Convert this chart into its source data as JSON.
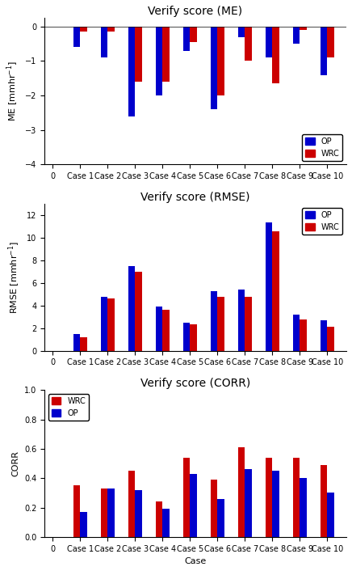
{
  "me_op": [
    -0.6,
    -0.9,
    -2.6,
    -2.0,
    -0.7,
    -2.4,
    -0.3,
    -0.9,
    -0.5,
    -1.4
  ],
  "me_wrc": [
    -0.15,
    -0.15,
    -1.6,
    -1.6,
    -0.45,
    -2.0,
    -1.0,
    -1.65,
    -0.1,
    -0.9
  ],
  "rmse_op": [
    1.5,
    4.8,
    7.5,
    3.9,
    2.5,
    5.3,
    5.4,
    11.4,
    3.2,
    2.7
  ],
  "rmse_wrc": [
    1.2,
    4.6,
    7.0,
    3.6,
    2.35,
    4.8,
    4.75,
    10.6,
    2.75,
    2.15
  ],
  "corr_wrc": [
    0.35,
    0.33,
    0.45,
    0.24,
    0.54,
    0.39,
    0.61,
    0.54,
    0.54,
    0.49
  ],
  "corr_op": [
    0.17,
    0.33,
    0.32,
    0.19,
    0.43,
    0.26,
    0.46,
    0.45,
    0.4,
    0.3
  ],
  "cases": [
    "Case 1",
    "Case 2",
    "Case 3",
    "Case 4",
    "Case 5",
    "Case 6",
    "Case 7",
    "Case 8",
    "Case 9",
    "Case 10"
  ],
  "op_color": "#0000cc",
  "wrc_color": "#cc0000",
  "title_me": "Verify score (ME)",
  "title_rmse": "Verify score (RMSE)",
  "title_corr": "Verify score (CORR)",
  "ylabel_me": "ME [mmhr$^{-1}$]",
  "ylabel_rmse": "RMSE [mmhr$^{-1}$]",
  "ylabel_corr": "CORR",
  "xlabel_corr": "Case",
  "ylim_me": [
    -4.0,
    0.25
  ],
  "ylim_rmse": [
    0,
    13
  ],
  "ylim_corr": [
    0.0,
    1.0
  ],
  "yticks_me": [
    0,
    -1,
    -2,
    -3,
    -4
  ],
  "yticks_rmse": [
    0,
    2,
    4,
    6,
    8,
    10,
    12
  ],
  "yticks_corr": [
    0.0,
    0.2,
    0.4,
    0.6,
    0.8,
    1.0
  ],
  "bar_width": 0.25,
  "bg_color": "#ffffff",
  "title_fontsize": 10,
  "label_fontsize": 8,
  "tick_fontsize": 7
}
